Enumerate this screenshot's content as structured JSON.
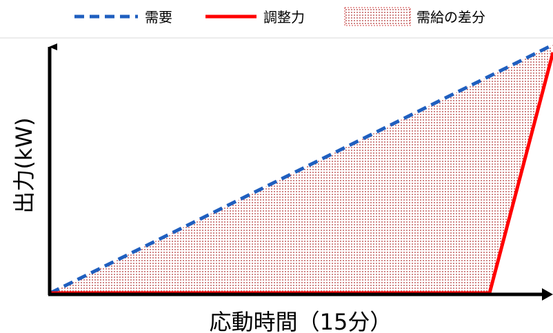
{
  "legend": {
    "demand_label": "需要",
    "adjust_label": "調整力",
    "gap_label": "需給の差分"
  },
  "axes": {
    "x_label": "応動時間（15分）",
    "y_label": "出力(kW)"
  },
  "colors": {
    "demand": "#1f5fbf",
    "adjust": "#ff0000",
    "gap_fill": "#e8a8a8",
    "gap_dots": "#b03030",
    "axis": "#000000"
  }
}
